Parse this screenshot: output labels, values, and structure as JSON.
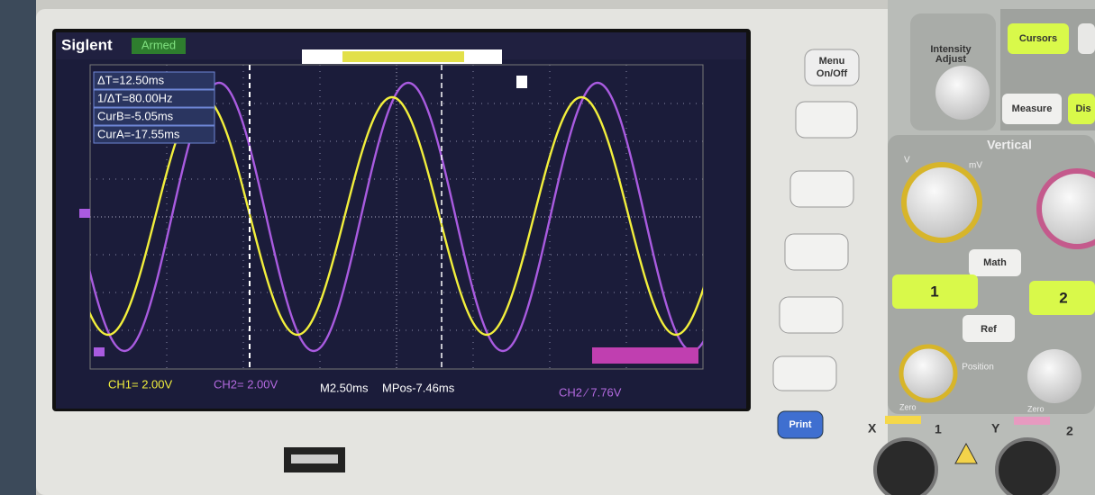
{
  "header": {
    "brand": "Siglent",
    "status": "Armed"
  },
  "cursor_readout": [
    "ΔT=12.50ms",
    "1/ΔT=80.00Hz",
    "CurB=-5.05ms",
    "CurA=-17.55ms"
  ],
  "status_bar": {
    "ch1": "CH1= 2.00V",
    "ch2": "CH2= 2.00V",
    "timebase": "M2.50ms",
    "position": "MPos-7.46ms",
    "trigger": "CH2 ∕ 7.76V"
  },
  "controls": {
    "menu": [
      "Menu",
      "On/Off"
    ],
    "print": "Print",
    "intensity": [
      "Intensity",
      "Adjust"
    ],
    "cursors": "Cursors",
    "measure": "Measure",
    "display": "Dis",
    "vertical": "Vertical",
    "volts": "V",
    "millivolts": "mV",
    "math": "Math",
    "ref": "Ref",
    "channel_1": "1",
    "channel_2": "2",
    "position": "Position",
    "zero_left": "Zero",
    "zero_right": "Zero",
    "x_input": "X",
    "y_input": "Y",
    "x_number": "1",
    "y_number": "2"
  }
}
